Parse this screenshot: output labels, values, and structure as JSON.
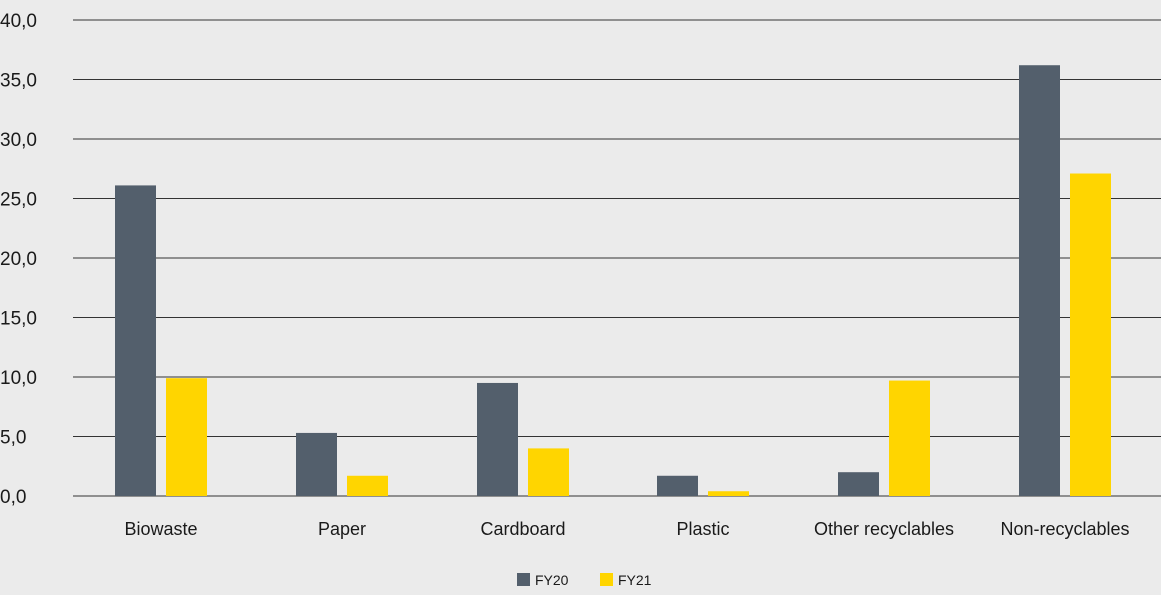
{
  "chart_data": {
    "type": "bar",
    "categories": [
      "Biowaste",
      "Paper",
      "Cardboard",
      "Plastic",
      "Other recyclables",
      "Non-recyclables"
    ],
    "series": [
      {
        "name": "FY20",
        "values": [
          26.1,
          5.3,
          9.5,
          1.7,
          2.0,
          36.2
        ],
        "color": "#535f6c"
      },
      {
        "name": "FY21",
        "values": [
          9.9,
          1.7,
          4.0,
          0.4,
          9.7,
          27.1
        ],
        "color": "#ffd500"
      }
    ],
    "ylim": [
      0,
      40
    ],
    "yticks": [
      "0,0",
      "5,0",
      "10,0",
      "15,0",
      "20,0",
      "25,0",
      "30,0",
      "35,0",
      "40,0"
    ],
    "ytick_values": [
      0,
      5,
      10,
      15,
      20,
      25,
      30,
      35,
      40
    ],
    "grid": true,
    "legend_position": "bottom-center",
    "background": "#ebebeb",
    "gridline_color": "#333333"
  }
}
